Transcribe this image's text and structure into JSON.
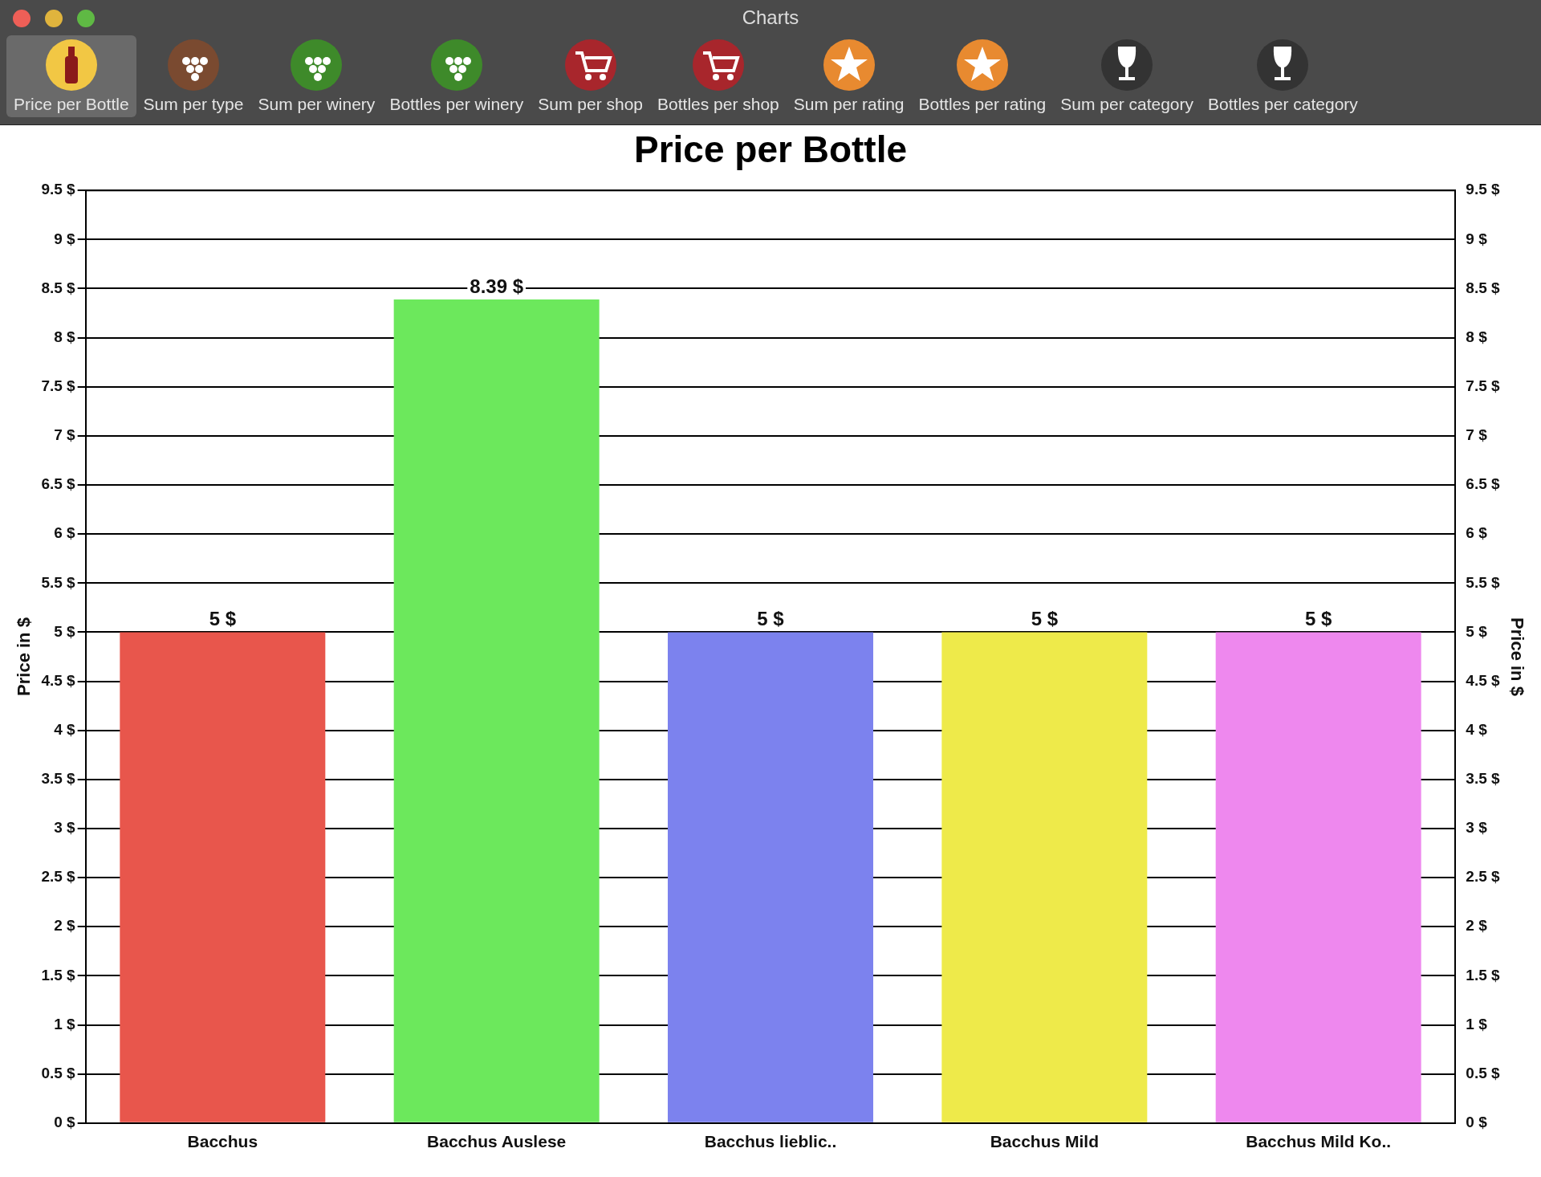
{
  "chart_data": {
    "type": "bar",
    "title": "Price per Bottle",
    "ylabel": "Price in $",
    "y2label": "Price in $",
    "annotations": [
      "Charts",
      "Price per Bottle",
      "Sum per type",
      "Sum per winery",
      "Bottles per winery",
      "Sum per shop",
      "Bottles per shop",
      "Sum per rating",
      "Bottles per rating",
      "Sum per category",
      "Bottles per category"
    ],
    "categories": [
      "Bacchus",
      "Bacchus Auslese",
      "Bacchus lieblic..",
      "Bacchus Mild",
      "Bacchus Mild Ko.."
    ],
    "values": [
      5,
      8.39,
      5,
      5,
      5
    ],
    "value_labels": [
      "5 $",
      "8.39 $",
      "5 $",
      "5 $",
      "5 $"
    ],
    "colors": [
      "#e8564c",
      "#6ce85c",
      "#7c82ee",
      "#eeea4a",
      "#ee88ee"
    ],
    "ylim": [
      0,
      9.5
    ],
    "yticks": [
      {
        "value": 0,
        "label": "0 $"
      },
      {
        "value": 0.5,
        "label": "0.5 $"
      },
      {
        "value": 1,
        "label": "1 $"
      },
      {
        "value": 1.5,
        "label": "1.5 $"
      },
      {
        "value": 2,
        "label": "2 $"
      },
      {
        "value": 2.5,
        "label": "2.5 $"
      },
      {
        "value": 3,
        "label": "3 $"
      },
      {
        "value": 3.5,
        "label": "3.5 $"
      },
      {
        "value": 4,
        "label": "4 $"
      },
      {
        "value": 4.5,
        "label": "4.5 $"
      },
      {
        "value": 5,
        "label": "5 $"
      },
      {
        "value": 5.5,
        "label": "5.5 $"
      },
      {
        "value": 6,
        "label": "6 $"
      },
      {
        "value": 6.5,
        "label": "6.5 $"
      },
      {
        "value": 7,
        "label": "7 $"
      },
      {
        "value": 7.5,
        "label": "7.5 $"
      },
      {
        "value": 8,
        "label": "8 $"
      },
      {
        "value": 8.5,
        "label": "8.5 $"
      },
      {
        "value": 9,
        "label": "9 $"
      },
      {
        "value": 9.5,
        "label": "9.5 $"
      }
    ],
    "y2lim": [
      0,
      9.5
    ],
    "y2ticks": [
      {
        "value": 0,
        "label": "0 $"
      },
      {
        "value": 0.5,
        "label": "0.5 $"
      },
      {
        "value": 1,
        "label": "1 $"
      },
      {
        "value": 1.5,
        "label": "1.5 $"
      },
      {
        "value": 2,
        "label": "2 $"
      },
      {
        "value": 2.5,
        "label": "2.5 $"
      },
      {
        "value": 3,
        "label": "3 $"
      },
      {
        "value": 3.5,
        "label": "3.5 $"
      },
      {
        "value": 4,
        "label": "4 $"
      },
      {
        "value": 4.5,
        "label": "4.5 $"
      },
      {
        "value": 5,
        "label": "5 $"
      },
      {
        "value": 5.5,
        "label": "5.5 $"
      },
      {
        "value": 6,
        "label": "6 $"
      },
      {
        "value": 6.5,
        "label": "6.5 $"
      },
      {
        "value": 7,
        "label": "7 $"
      },
      {
        "value": 7.5,
        "label": "7.5 $"
      },
      {
        "value": 8,
        "label": "8 $"
      },
      {
        "value": 8.5,
        "label": "8.5 $"
      },
      {
        "value": 9,
        "label": "9 $"
      },
      {
        "value": 9.5,
        "label": "9.5 $"
      }
    ],
    "grid": "y",
    "legend": false
  }
}
